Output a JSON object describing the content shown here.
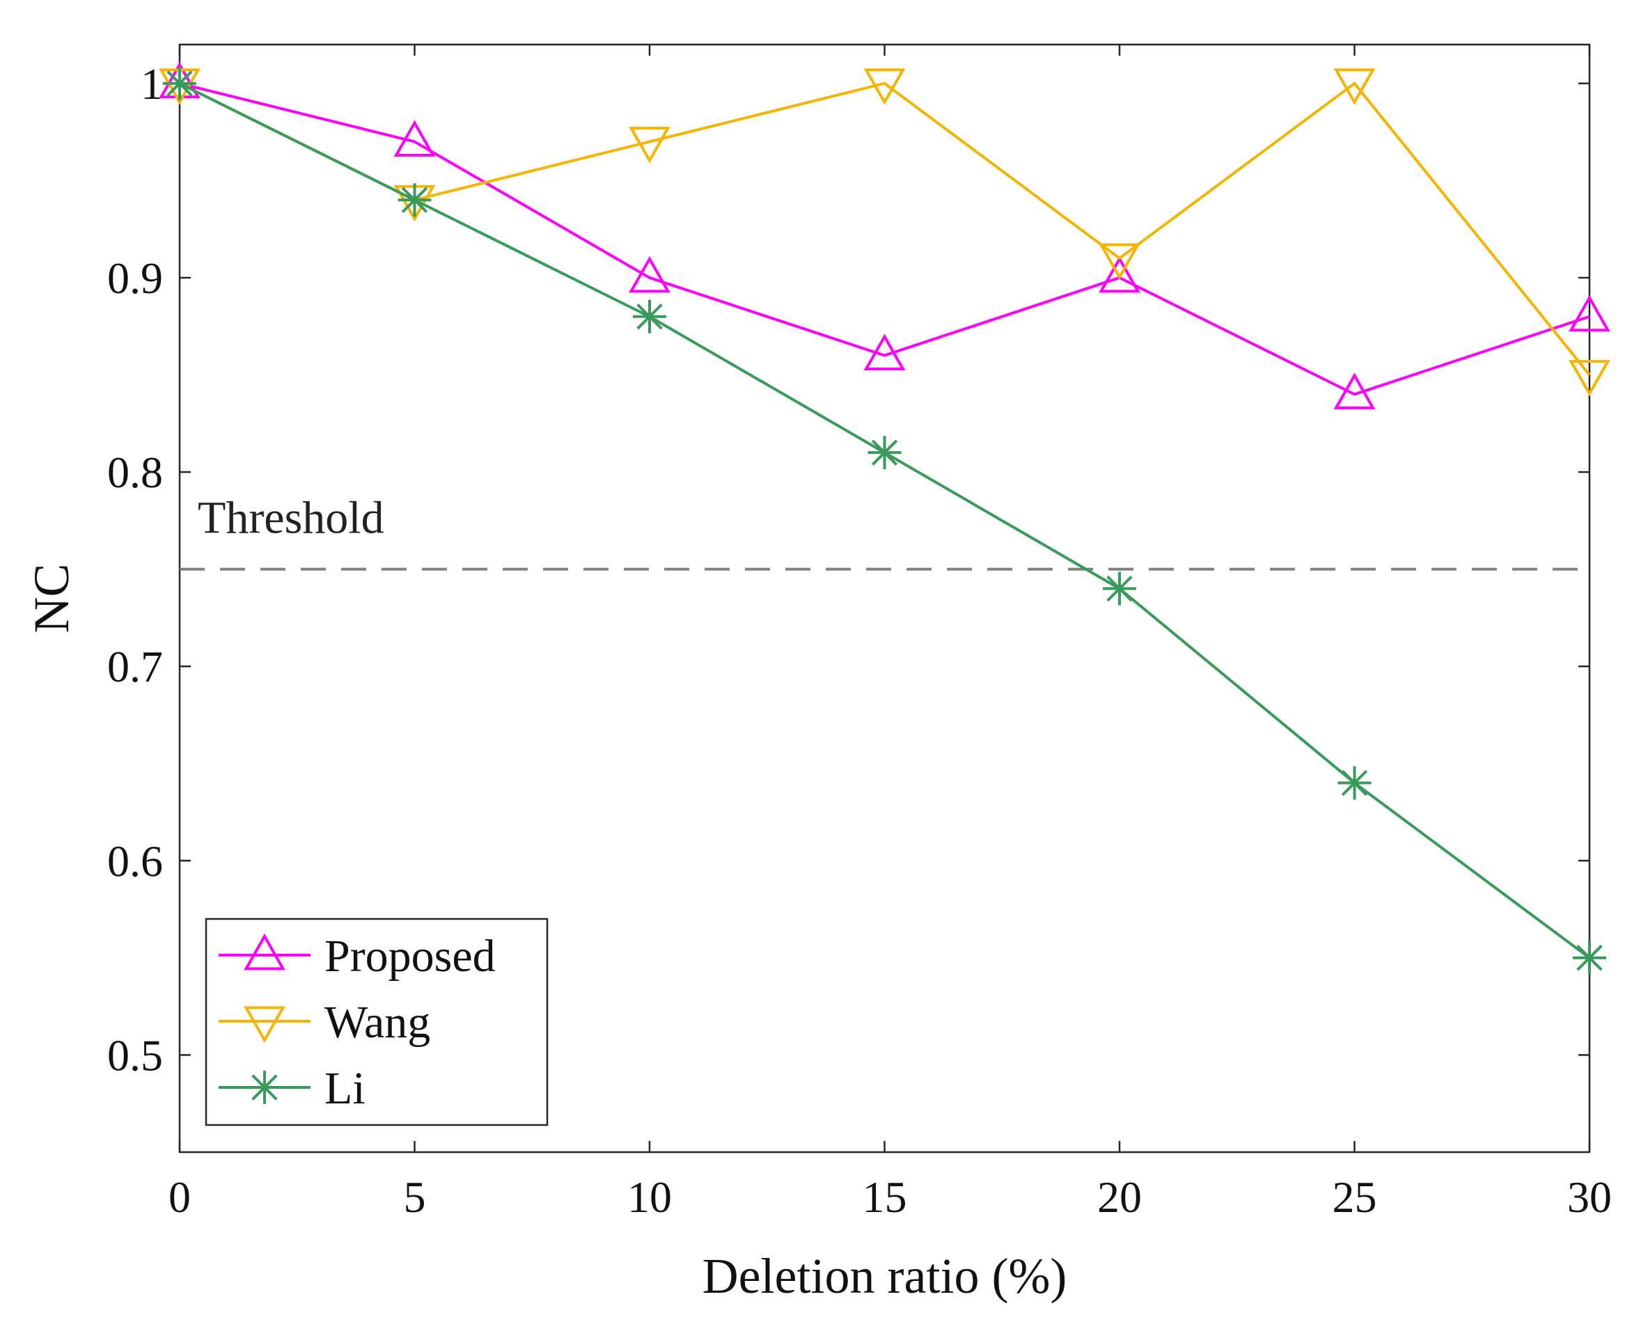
{
  "chart_data": {
    "type": "line",
    "title": "",
    "xlabel": "Deletion ratio (%)",
    "ylabel": "NC",
    "x": [
      0,
      5,
      10,
      15,
      20,
      25,
      30
    ],
    "xlim": [
      0,
      30
    ],
    "ylim": [
      0.45,
      1.02
    ],
    "xticks": [
      0,
      5,
      10,
      15,
      20,
      25,
      30
    ],
    "yticks": [
      0.5,
      0.6,
      0.7,
      0.8,
      0.9,
      1
    ],
    "ytick_labels": [
      "0.5",
      "0.6",
      "0.7",
      "0.8",
      "0.9",
      "1"
    ],
    "xtick_labels": [
      "0",
      "5",
      "10",
      "15",
      "20",
      "25",
      "30"
    ],
    "grid": false,
    "legend_position": "bottom-left",
    "series": [
      {
        "name": "Proposed",
        "marker": "triangle-up",
        "color": "#ff00ff",
        "values": [
          1.0,
          0.97,
          0.9,
          0.86,
          0.9,
          0.84,
          0.88
        ]
      },
      {
        "name": "Wang",
        "marker": "triangle-down",
        "color": "#f5b400",
        "values": [
          1.0,
          0.94,
          0.97,
          1.0,
          0.91,
          1.0,
          0.85
        ]
      },
      {
        "name": "Li",
        "marker": "asterisk",
        "color": "#3a9a5b",
        "values": [
          1.0,
          0.94,
          0.88,
          0.81,
          0.74,
          0.64,
          0.55
        ]
      }
    ],
    "threshold": {
      "label": "Threshold",
      "value": 0.75,
      "color": "#808080"
    }
  }
}
